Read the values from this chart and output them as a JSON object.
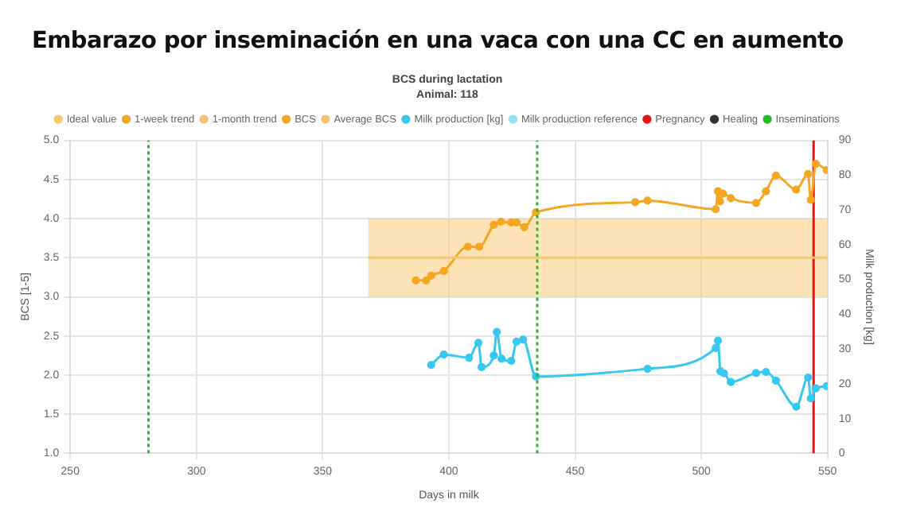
{
  "chart_data": {
    "type": "line",
    "title": "Embarazo por inseminación en una vaca con una CC en aumento",
    "subtitle": "BCS during lactation",
    "annotations": [
      "Animal: 118"
    ],
    "xlabel": "Days in milk",
    "ylabel": "BCS [1-5]",
    "y2label": "Milk production [kg]",
    "xlim": [
      250,
      550
    ],
    "xticks": [
      250,
      300,
      350,
      400,
      450,
      500,
      550
    ],
    "ylim": [
      1,
      5
    ],
    "yticks": [
      {
        "value": 1,
        "label": "1.0"
      },
      {
        "value": 1.5,
        "label": "1.5"
      },
      {
        "value": 2,
        "label": "2.0"
      },
      {
        "value": 2.5,
        "label": "2.5"
      },
      {
        "value": 3,
        "label": "3.0"
      },
      {
        "value": 3.5,
        "label": "3.5"
      },
      {
        "value": 4,
        "label": "4.0"
      },
      {
        "value": 4.5,
        "label": "4.5"
      },
      {
        "value": 5,
        "label": "5.0"
      }
    ],
    "y2lim": [
      0,
      90
    ],
    "y2ticks": [
      0,
      10,
      20,
      30,
      40,
      50,
      60,
      70,
      80,
      90
    ],
    "grid": true,
    "legend": "top",
    "marker": "circle",
    "line_style": "solid",
    "series": [
      {
        "name": "Ideal value",
        "color": "#fbc56c",
        "x": [
          368,
          550
        ],
        "values": [
          3.5,
          3.5
        ],
        "lower": [
          3,
          3
        ],
        "upper": [
          4,
          4
        ],
        "marker": "none"
      },
      {
        "name": "1-week trend",
        "color": "#f5a623"
      },
      {
        "name": "1-month trend",
        "color": "#f8c271"
      },
      {
        "name": "BCS",
        "color": "#f5a623",
        "x": [
          386.9,
          391,
          393,
          398,
          407.5,
          412,
          417.8,
          420.7,
          424.7,
          426.8,
          429.9,
          434.5,
          473.8,
          478.7,
          505.7,
          506.6,
          507.4,
          508.6,
          511.7,
          521.7,
          525.6,
          529.6,
          537.6,
          542.3,
          543.4,
          545.4,
          549.7
        ],
        "values": [
          3.21,
          3.21,
          3.27,
          3.33,
          3.64,
          3.64,
          3.92,
          3.96,
          3.95,
          3.95,
          3.89,
          4.08,
          4.21,
          4.23,
          4.12,
          4.35,
          4.22,
          4.32,
          4.26,
          4.2,
          4.35,
          4.55,
          4.37,
          4.57,
          4.24,
          4.7,
          4.62
        ]
      },
      {
        "name": "Average BCS",
        "color": "#f8c271"
      },
      {
        "name": "Milk production [kg]",
        "color": "#36c8f0",
        "axis": "y2",
        "x": [
          393,
          398,
          408,
          411.7,
          413,
          417.8,
          419,
          420.9,
          424.7,
          426.8,
          429.4,
          434.5,
          478.7,
          505.7,
          506.6,
          507.6,
          509,
          511.7,
          521.7,
          525.6,
          529.6,
          537.6,
          542.3,
          543.4,
          545.4,
          549.7
        ],
        "values": [
          25.4,
          28.4,
          27.5,
          31.8,
          24.8,
          28.1,
          34.9,
          27.2,
          26.6,
          32.1,
          32.7,
          22.1,
          24.3,
          30.3,
          32.4,
          23.6,
          23,
          20.5,
          23.1,
          23.4,
          20.9,
          13.4,
          21.8,
          15.8,
          18.7,
          19.3
        ]
      },
      {
        "name": "Milk production reference",
        "color": "#93e0f5"
      },
      {
        "name": "Pregnancy",
        "color": "#ee1111",
        "x": [
          544.5,
          544.5
        ],
        "values": [
          1,
          5
        ],
        "marker": "none"
      },
      {
        "name": "Healing",
        "color": "#333333"
      }
    ],
    "ref_lines": [
      {
        "axis": "x",
        "value": 281,
        "label": "Inseminations",
        "color": "#22bb22",
        "line_style": "dotted"
      },
      {
        "axis": "x",
        "value": 435,
        "color": "#22bb22",
        "line_style": "dotted"
      }
    ]
  }
}
